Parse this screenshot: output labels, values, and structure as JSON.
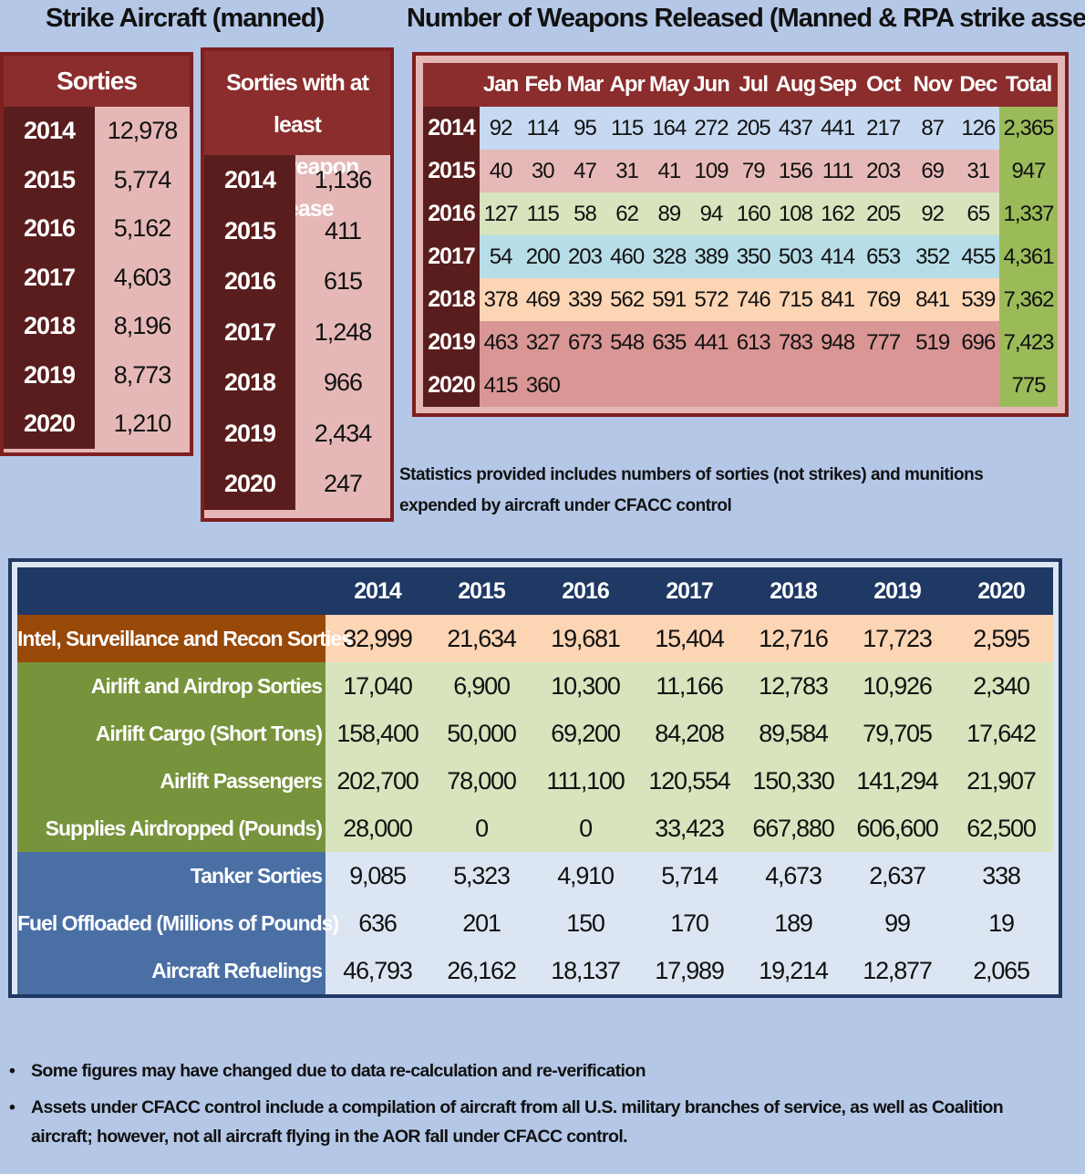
{
  "titles": {
    "strike": "Strike Aircraft (manned)",
    "weapons": "Number of Weapons Released (Manned & RPA strike assets)"
  },
  "sorties": {
    "header": "Sorties",
    "rows": [
      {
        "year": "2014",
        "value": "12,978"
      },
      {
        "year": "2015",
        "value": "5,774"
      },
      {
        "year": "2016",
        "value": "5,162"
      },
      {
        "year": "2017",
        "value": "4,603"
      },
      {
        "year": "2018",
        "value": "8,196"
      },
      {
        "year": "2019",
        "value": "8,773"
      },
      {
        "year": "2020",
        "value": "1,210"
      }
    ]
  },
  "release": {
    "header_line1": "Sorties with at least",
    "header_line2": "one weapon release",
    "rows": [
      {
        "year": "2014",
        "value": "1,136"
      },
      {
        "year": "2015",
        "value": "411"
      },
      {
        "year": "2016",
        "value": "615"
      },
      {
        "year": "2017",
        "value": "1,248"
      },
      {
        "year": "2018",
        "value": "966"
      },
      {
        "year": "2019",
        "value": "2,434"
      },
      {
        "year": "2020",
        "value": "247"
      }
    ]
  },
  "weapons": {
    "columns": [
      "",
      "Jan",
      "Feb",
      "Mar",
      "Apr",
      "May",
      "Jun",
      "Jul",
      "Aug",
      "Sep",
      "Oct",
      "Nov",
      "Dec",
      "Total"
    ],
    "rows": [
      {
        "year": "2014",
        "bg": "#c6d9f1",
        "values": [
          "92",
          "114",
          "95",
          "115",
          "164",
          "272",
          "205",
          "437",
          "441",
          "217",
          "87",
          "126"
        ],
        "total": "2,365"
      },
      {
        "year": "2015",
        "bg": "#e6b9b8",
        "values": [
          "40",
          "30",
          "47",
          "31",
          "41",
          "109",
          "79",
          "156",
          "111",
          "203",
          "69",
          "31"
        ],
        "total": "947"
      },
      {
        "year": "2016",
        "bg": "#d7e4bd",
        "values": [
          "127",
          "115",
          "58",
          "62",
          "89",
          "94",
          "160",
          "108",
          "162",
          "205",
          "92",
          "65"
        ],
        "total": "1,337"
      },
      {
        "year": "2017",
        "bg": "#b7dde8",
        "values": [
          "54",
          "200",
          "203",
          "460",
          "328",
          "389",
          "350",
          "503",
          "414",
          "653",
          "352",
          "455"
        ],
        "total": "4,361"
      },
      {
        "year": "2018",
        "bg": "#fcd5b5",
        "values": [
          "378",
          "469",
          "339",
          "562",
          "591",
          "572",
          "746",
          "715",
          "841",
          "769",
          "841",
          "539"
        ],
        "total": "7,362"
      },
      {
        "year": "2019",
        "bg": "#d99694",
        "values": [
          "463",
          "327",
          "673",
          "548",
          "635",
          "441",
          "613",
          "783",
          "948",
          "777",
          "519",
          "696"
        ],
        "total": "7,423"
      },
      {
        "year": "2020",
        "bg": "#d99694",
        "values": [
          "415",
          "360",
          "",
          "",
          "",
          "",
          "",
          "",
          "",
          "",
          "",
          ""
        ],
        "total": "775"
      }
    ]
  },
  "note": "Statistics provided includes numbers of sorties (not strikes) and munitions expended by aircraft under CFACC control",
  "ops": {
    "years": [
      "2014",
      "2015",
      "2016",
      "2017",
      "2018",
      "2019",
      "2020"
    ],
    "rows": [
      {
        "label": "Intel, Surveillance and Recon Sorties",
        "label_bg": "#984807",
        "row_bg": "#fcd5b5",
        "values": [
          "32,999",
          "21,634",
          "19,681",
          "15,404",
          "12,716",
          "17,723",
          "2,595"
        ]
      },
      {
        "label": "Airlift and Airdrop Sorties",
        "label_bg": "#77933c",
        "row_bg": "#d7e4bd",
        "values": [
          "17,040",
          "6,900",
          "10,300",
          "11,166",
          "12,783",
          "10,926",
          "2,340"
        ]
      },
      {
        "label": "Airlift Cargo (Short Tons)",
        "label_bg": "#77933c",
        "row_bg": "#d7e4bd",
        "values": [
          "158,400",
          "50,000",
          "69,200",
          "84,208",
          "89,584",
          "79,705",
          "17,642"
        ]
      },
      {
        "label": "Airlift Passengers",
        "label_bg": "#77933c",
        "row_bg": "#d7e4bd",
        "values": [
          "202,700",
          "78,000",
          "111,100",
          "120,554",
          "150,330",
          "141,294",
          "21,907"
        ]
      },
      {
        "label": "Supplies Airdropped (Pounds)",
        "label_bg": "#77933c",
        "row_bg": "#d7e4bd",
        "values": [
          "28,000",
          "0",
          "0",
          "33,423",
          "667,880",
          "606,600",
          "62,500"
        ]
      },
      {
        "label": "Tanker Sorties",
        "label_bg": "#4a6fa5",
        "row_bg": "#dce6f2",
        "values": [
          "9,085",
          "5,323",
          "4,910",
          "5,714",
          "4,673",
          "2,637",
          "338"
        ]
      },
      {
        "label": "Fuel Offloaded (Millions of Pounds)",
        "label_bg": "#4a6fa5",
        "row_bg": "#dce6f2",
        "values": [
          "636",
          "201",
          "150",
          "170",
          "189",
          "99",
          "19"
        ]
      },
      {
        "label": "Aircraft Refuelings",
        "label_bg": "#4a6fa5",
        "row_bg": "#dce6f2",
        "values": [
          "46,793",
          "26,162",
          "18,137",
          "17,989",
          "19,214",
          "12,877",
          "2,065"
        ]
      }
    ]
  },
  "bullets": [
    "Some figures may have changed due to data re-calculation and re-verification",
    "Assets under CFACC control include a compilation of aircraft from all U.S.  military branches of service, as well as Coalition aircraft; however, not all aircraft flying in the AOR fall under CFACC control."
  ]
}
